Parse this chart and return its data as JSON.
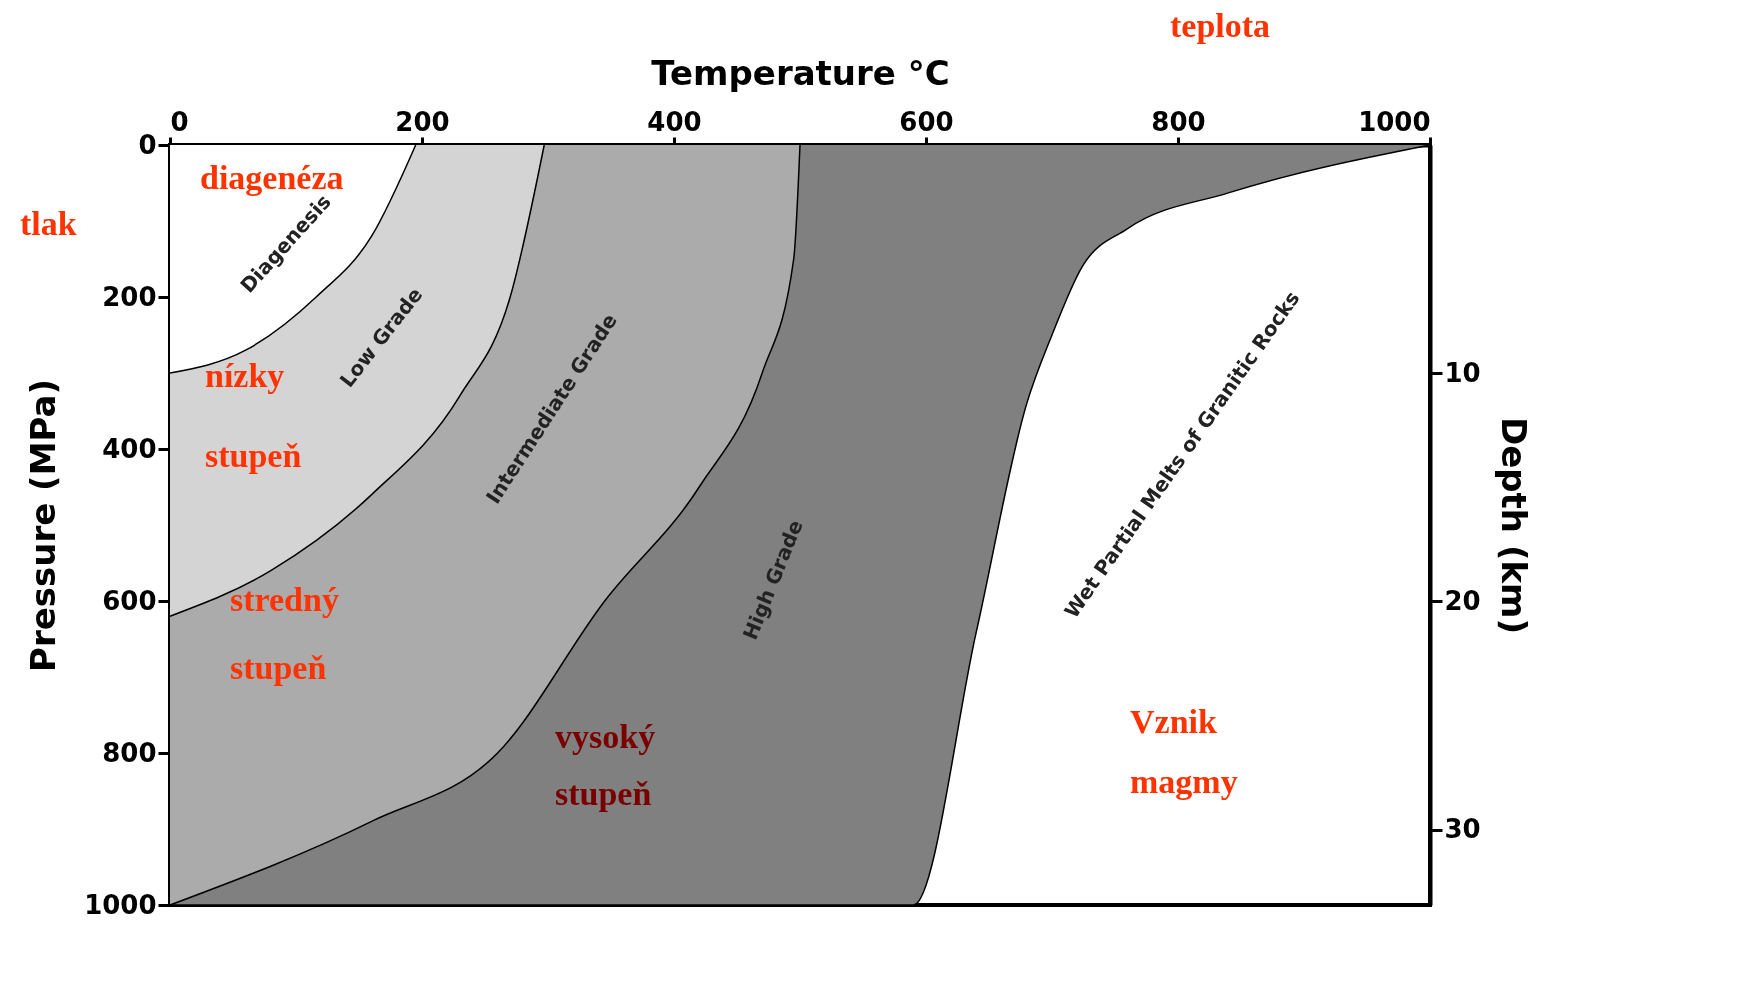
{
  "chart_data": {
    "type": "area",
    "xlabel": "Temperature °C",
    "ylabel": "Pressure (MPa)",
    "y2label": "Depth (km)",
    "xlim": [
      0,
      1000
    ],
    "xticks": [
      0,
      200,
      400,
      600,
      800,
      1000
    ],
    "ylim": [
      1000,
      0
    ],
    "yticks": [
      0,
      200,
      400,
      600,
      800,
      1000
    ],
    "y2lim": [
      33.3,
      0
    ],
    "y2ticks": [
      10,
      20,
      30
    ],
    "marker": "none",
    "series": [
      {
        "type": "area",
        "color": "#808080",
        "x": [
          0,
          590,
          640,
          680,
          700,
          724,
          760,
          840,
          1000
        ],
        "values": [
          1000,
          1000,
          640,
          340,
          250,
          160,
          110,
          63,
          0
        ]
      },
      {
        "type": "area",
        "color": "#ababab",
        "x": [
          0,
          160,
          260,
          345,
          420,
          470,
          495,
          500
        ],
        "values": [
          1000,
          890,
          800,
          600,
          450,
          300,
          150,
          0
        ]
      },
      {
        "type": "area",
        "color": "#d4d4d4",
        "x": [
          0,
          80,
          160,
          230,
          270,
          297
        ],
        "values": [
          620,
          560,
          460,
          330,
          200,
          0
        ]
      },
      {
        "type": "area",
        "color": "#ffffff",
        "x": [
          0,
          60,
          116,
          160,
          195
        ],
        "values": [
          300,
          270,
          200,
          120,
          0
        ]
      }
    ],
    "annotations": [
      "teplota",
      "tlak",
      "diagenéza",
      "Diagenesis",
      "Low Grade",
      "nízky",
      "stupeň",
      "Intermediate Grade",
      "stredný",
      "stupeň",
      "High Grade",
      "vysoký",
      "stupeň",
      "Wet Partial Melts of Granitic Rocks",
      "Vznik",
      "magmy"
    ]
  }
}
